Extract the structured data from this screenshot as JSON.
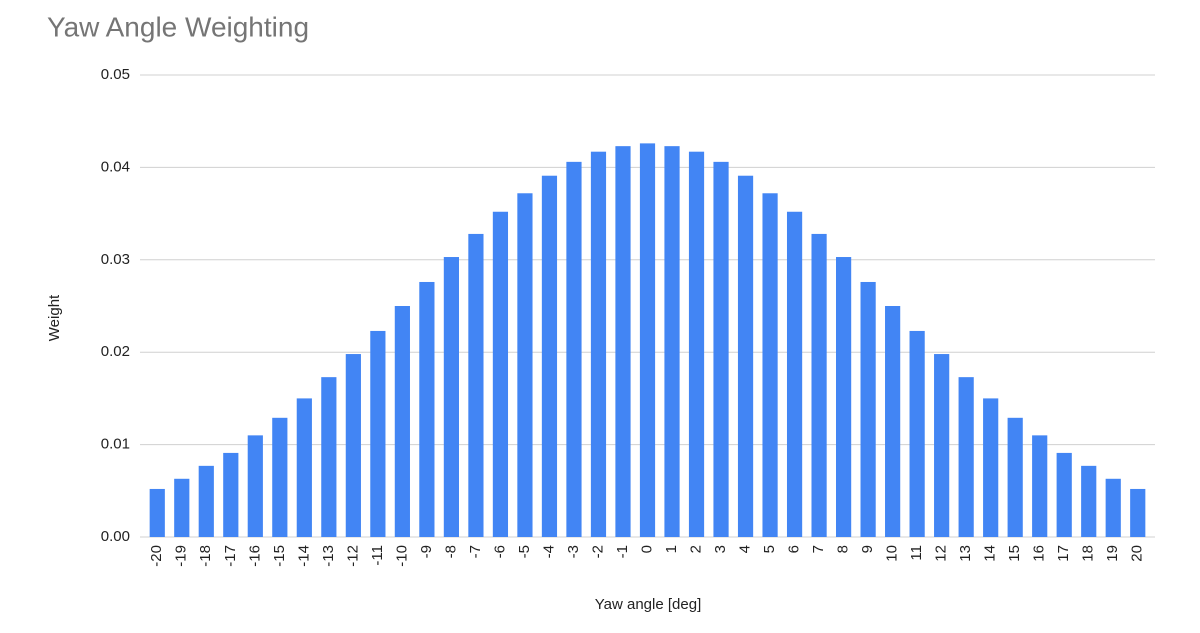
{
  "chart_data": {
    "type": "bar",
    "title": "Yaw Angle Weighting",
    "x_label": "Yaw angle [deg]",
    "y_label": "Weight",
    "categories": [
      "-20",
      "-19",
      "-18",
      "-17",
      "-16",
      "-15",
      "-14",
      "-13",
      "-12",
      "-11",
      "-10",
      "-9",
      "-8",
      "-7",
      "-6",
      "-5",
      "-4",
      "-3",
      "-2",
      "-1",
      "0",
      "1",
      "2",
      "3",
      "4",
      "5",
      "6",
      "7",
      "8",
      "9",
      "10",
      "11",
      "12",
      "13",
      "14",
      "15",
      "16",
      "17",
      "18",
      "19",
      "20"
    ],
    "values": [
      0.0052,
      0.0063,
      0.0077,
      0.0091,
      0.011,
      0.0129,
      0.015,
      0.0173,
      0.0198,
      0.0223,
      0.025,
      0.0276,
      0.0303,
      0.0328,
      0.0352,
      0.0372,
      0.0391,
      0.0406,
      0.0417,
      0.0423,
      0.0426,
      0.0423,
      0.0417,
      0.0406,
      0.0391,
      0.0372,
      0.0352,
      0.0328,
      0.0303,
      0.0276,
      0.025,
      0.0223,
      0.0198,
      0.0173,
      0.015,
      0.0129,
      0.011,
      0.0091,
      0.0077,
      0.0063,
      0.0052
    ],
    "color": "#4285f4",
    "ylim": [
      0,
      0.05
    ],
    "yticks": [
      {
        "value": 0,
        "label": "0.00"
      },
      0.01,
      0.02,
      0.03,
      0.04,
      0.05
    ],
    "grid": true
  }
}
